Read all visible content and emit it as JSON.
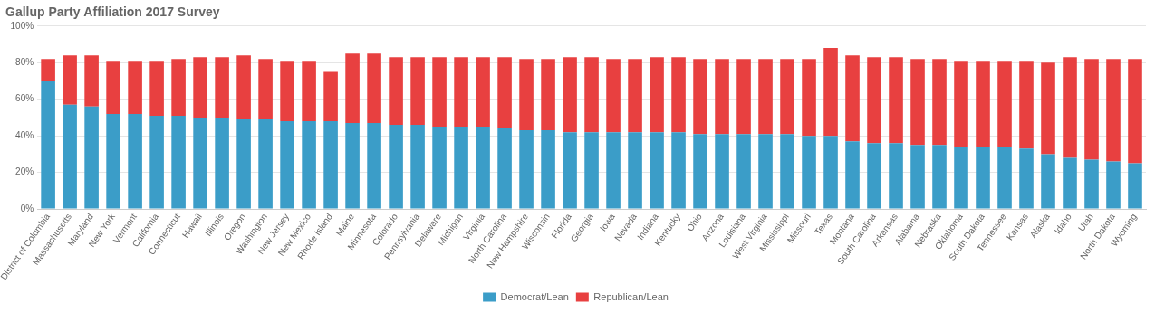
{
  "chart_data": {
    "type": "bar",
    "title": "Gallup Party Affiliation 2017 Survey",
    "stacked": true,
    "categories": [
      "District of Columbia",
      "Massachusetts",
      "Maryland",
      "New York",
      "Vermont",
      "California",
      "Connecticut",
      "Hawaii",
      "Illinois",
      "Oregon",
      "Washington",
      "New Jersey",
      "New Mexico",
      "Rhode Island",
      "Maine",
      "Minnesota",
      "Colorado",
      "Pennsylvania",
      "Delaware",
      "Michigan",
      "Virginia",
      "North Carolina",
      "New Hampshire",
      "Wisconsin",
      "Florida",
      "Georgia",
      "Iowa",
      "Nevada",
      "Indiana",
      "Kentucky",
      "Ohio",
      "Arizona",
      "Louisiana",
      "West Virginia",
      "Mississippi",
      "Missouri",
      "Texas",
      "Montana",
      "South Carolina",
      "Arkansas",
      "Alabama",
      "Nebraska",
      "Oklahoma",
      "South Dakota",
      "Tennessee",
      "Kansas",
      "Alaska",
      "Idaho",
      "Utah",
      "North Dakota",
      "Wyoming"
    ],
    "series": [
      {
        "name": "Democrat/Lean",
        "color": "#3b9dc8",
        "values": [
          70,
          57,
          56,
          52,
          52,
          51,
          51,
          50,
          50,
          49,
          49,
          48,
          48,
          48,
          47,
          47,
          46,
          46,
          45,
          45,
          45,
          44,
          43,
          43,
          42,
          42,
          42,
          42,
          42,
          42,
          41,
          41,
          41,
          41,
          41,
          40,
          40,
          37,
          36,
          36,
          35,
          35,
          34,
          34,
          34,
          33,
          30,
          28,
          27,
          26,
          25
        ]
      },
      {
        "name": "Republican/Lean",
        "color": "#e84040",
        "values": [
          12,
          27,
          28,
          29,
          29,
          30,
          31,
          33,
          33,
          35,
          33,
          33,
          33,
          27,
          38,
          38,
          37,
          37,
          38,
          38,
          38,
          39,
          39,
          39,
          41,
          41,
          40,
          40,
          41,
          41,
          41,
          41,
          41,
          41,
          41,
          42,
          48,
          47,
          47,
          47,
          47,
          47,
          47,
          47,
          47,
          48,
          50,
          55,
          55,
          56,
          57
        ]
      }
    ],
    "ylim": [
      0,
      100
    ],
    "yticks": [
      {
        "value": 0,
        "label": "0%"
      },
      {
        "value": 20,
        "label": "20%"
      },
      {
        "value": 40,
        "label": "40%"
      },
      {
        "value": 60,
        "label": "60%"
      },
      {
        "value": 80,
        "label": "80%"
      },
      {
        "value": 100,
        "label": "100%"
      }
    ],
    "grid": "y",
    "legend": "bottom"
  }
}
